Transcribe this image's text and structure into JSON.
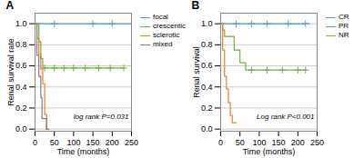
{
  "chart_data": [
    {
      "type": "step",
      "title": "A",
      "xlabel": "Time (months)",
      "ylabel": "Renal survival rate",
      "annotation": "log rank P=0.031",
      "xlim": [
        0,
        250
      ],
      "ylim": [
        -0.02,
        1.1
      ],
      "xticks": [
        0,
        50,
        100,
        150,
        200,
        250
      ],
      "yticks": [
        {
          "value": 0.0,
          "label": "0.0"
        },
        0.2,
        0.4,
        0.6,
        0.8,
        {
          "value": 1.0,
          "label": "1.0"
        }
      ],
      "grid": "y",
      "legend": "right",
      "series": [
        {
          "name": "focal",
          "color": "#5b9bd5",
          "x": [
            0,
            3,
            3,
            250
          ],
          "values": [
            1.0,
            1.0,
            1.0,
            1.0
          ],
          "censor_x": [
            50,
            150,
            200
          ],
          "censor_y": [
            1.0,
            1.0,
            1.0
          ]
        },
        {
          "name": "crescentic",
          "color": "#70ad47",
          "x": [
            0,
            10,
            15,
            20,
            25,
            230
          ],
          "values": [
            1.0,
            0.83,
            0.67,
            0.58,
            0.58,
            0.58
          ],
          "censor_x": [
            25,
            50,
            75,
            100,
            130,
            165,
            195,
            230
          ],
          "censor_y": [
            0.58,
            0.58,
            0.58,
            0.58,
            0.58,
            0.58,
            0.58,
            0.58
          ]
        },
        {
          "name": "sclerotic",
          "color": "#ed7d31",
          "x": [
            0,
            5,
            10,
            15,
            20,
            25,
            30,
            35
          ],
          "values": [
            1.0,
            0.86,
            0.71,
            0.57,
            0.43,
            0.14,
            0.0,
            0.0
          ]
        },
        {
          "name": "mixed",
          "color": "#7f7f7f",
          "x": [
            0,
            5,
            10,
            15,
            18,
            30,
            35
          ],
          "values": [
            1.0,
            0.7,
            0.5,
            0.3,
            0.1,
            0.0,
            0.0
          ]
        }
      ]
    },
    {
      "type": "step",
      "title": "B",
      "xlabel": "Time (months)",
      "ylabel": "Renal survival",
      "annotation": "Log rank P<0.001",
      "xlim": [
        0,
        250
      ],
      "ylim": [
        -0.02,
        1.1
      ],
      "xticks": [
        0,
        50,
        100,
        150,
        200,
        250
      ],
      "yticks": [
        {
          "value": 0.0,
          "label": "0.0"
        },
        0.2,
        0.4,
        0.6,
        0.8,
        {
          "value": 1.0,
          "label": "1.0"
        }
      ],
      "grid": "y",
      "legend": "right",
      "series": [
        {
          "name": "CR",
          "color": "#5b9bd5",
          "x": [
            0,
            5,
            230
          ],
          "values": [
            1.0,
            1.0,
            1.0
          ],
          "censor_x": [
            40,
            80,
            120,
            175,
            220
          ],
          "censor_y": [
            1.0,
            1.0,
            1.0,
            1.0,
            1.0
          ]
        },
        {
          "name": "PR",
          "color": "#70ad47",
          "x": [
            0,
            5,
            10,
            35,
            50,
            65,
            80,
            220
          ],
          "values": [
            1.0,
            0.94,
            0.88,
            0.75,
            0.63,
            0.56,
            0.56,
            0.56
          ],
          "censor_x": [
            80,
            120,
            160,
            200,
            220
          ],
          "censor_y": [
            0.56,
            0.56,
            0.56,
            0.56,
            0.56
          ]
        },
        {
          "name": "NR",
          "color": "#ed7d31",
          "x": [
            0,
            5,
            10,
            15,
            20,
            25,
            30,
            35,
            40
          ],
          "values": [
            1.0,
            0.75,
            0.5,
            0.38,
            0.25,
            0.13,
            0.06,
            0.06,
            0.06
          ]
        }
      ]
    }
  ]
}
